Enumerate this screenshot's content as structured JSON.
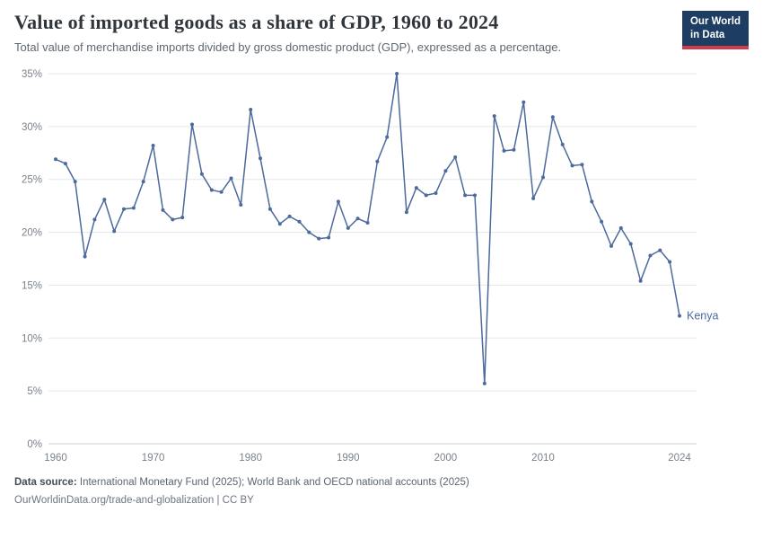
{
  "header": {
    "title": "Value of imported goods as a share of GDP, 1960 to 2024",
    "subtitle": "Total value of merchandise imports divided by gross domestic product (GDP), expressed as a percentage.",
    "logo": {
      "line1": "Our World",
      "line2": "in Data"
    }
  },
  "chart_data": {
    "type": "line",
    "title": "Value of imported goods as a share of GDP, 1960 to 2024",
    "subtitle": "Total value of merchandise imports divided by gross domestic product (GDP), expressed as a percentage.",
    "xlabel": "",
    "ylabel": "",
    "xlim": [
      1960,
      2024
    ],
    "ylim": [
      0,
      35
    ],
    "grid": true,
    "legend": "end-of-line-label",
    "x_ticks": [
      1960,
      1970,
      1980,
      1990,
      2000,
      2010,
      2024
    ],
    "y_ticks": [
      "0%",
      "5%",
      "10%",
      "15%",
      "20%",
      "25%",
      "30%",
      "35%"
    ],
    "series": [
      {
        "name": "Kenya",
        "color": "#4C6A9C",
        "x": [
          1960,
          1961,
          1962,
          1963,
          1964,
          1965,
          1966,
          1967,
          1968,
          1969,
          1970,
          1971,
          1972,
          1973,
          1974,
          1975,
          1976,
          1977,
          1978,
          1979,
          1980,
          1981,
          1982,
          1983,
          1984,
          1985,
          1986,
          1987,
          1988,
          1989,
          1990,
          1991,
          1992,
          1993,
          1994,
          1995,
          1996,
          1997,
          1998,
          1999,
          2000,
          2001,
          2002,
          2003,
          2004,
          2005,
          2006,
          2007,
          2008,
          2009,
          2010,
          2011,
          2012,
          2013,
          2014,
          2015,
          2016,
          2017,
          2018,
          2019,
          2020,
          2021,
          2022,
          2023,
          2024
        ],
        "values": [
          26.9,
          26.5,
          24.8,
          17.7,
          21.2,
          23.1,
          20.1,
          22.2,
          22.3,
          24.8,
          28.2,
          22.1,
          21.2,
          21.4,
          30.2,
          25.5,
          24.0,
          23.8,
          25.1,
          22.6,
          31.6,
          27.0,
          22.2,
          20.8,
          21.5,
          21.0,
          20.0,
          19.4,
          19.5,
          22.9,
          20.4,
          21.3,
          20.9,
          26.7,
          29.0,
          35.0,
          21.9,
          24.2,
          23.5,
          23.7,
          25.8,
          27.1,
          23.5,
          23.5,
          5.7,
          31.0,
          27.7,
          27.8,
          32.3,
          23.2,
          25.2,
          30.9,
          28.3,
          26.3,
          26.4,
          22.9,
          21.0,
          18.7,
          20.4,
          18.9,
          15.4,
          17.8,
          18.3,
          17.2,
          12.1
        ]
      }
    ]
  },
  "footer": {
    "source_label": "Data source:",
    "sources": "International Monetary Fund (2025); World Bank and OECD national accounts (2025)",
    "url": "OurWorldinData.org/trade-and-globalization",
    "separator": "|",
    "license": "CC BY"
  },
  "colors": {
    "line": "#4C6A9C",
    "grid": "#e3e7ea",
    "axis_line": "#c9d0d6",
    "tick_label": "#7a828b",
    "title": "#31363c",
    "logo_bg": "#1d3d63",
    "logo_accent": "#d13b4b"
  }
}
